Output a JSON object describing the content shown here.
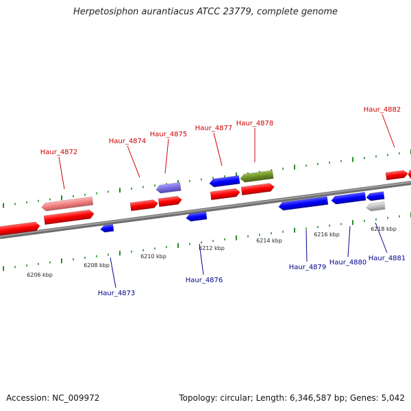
{
  "title": "Herpetosiphon aurantiacus ATCC 23779, complete genome",
  "footer": {
    "accession": "Accession: NC_009972",
    "summary": "Topology: circular; Length: 6,346,587 bp; Genes: 5,042"
  },
  "colors": {
    "backbone": "#808080",
    "forward": "#ff0000",
    "forward_light": "#f08080",
    "reverse": "#0000ff",
    "reverse_light": "#7a6ee0",
    "olive": "#6b8e23",
    "gray": "#c0c0c0",
    "forward_label": "#cc0000",
    "reverse_label": "#00008b",
    "tick": "#228b22"
  },
  "scale": {
    "ticks": [
      "6206 kbp",
      "6208 kbp",
      "6210 kbp",
      "6212 kbp",
      "6214 kbp",
      "6216 kbp",
      "6218 kbp"
    ]
  },
  "genes": [
    {
      "name": "Haur_4872",
      "strand": "forward"
    },
    {
      "name": "Haur_4873",
      "strand": "reverse"
    },
    {
      "name": "Haur_4874",
      "strand": "forward"
    },
    {
      "name": "Haur_4875",
      "strand": "forward"
    },
    {
      "name": "Haur_4876",
      "strand": "reverse"
    },
    {
      "name": "Haur_4877",
      "strand": "forward"
    },
    {
      "name": "Haur_4878",
      "strand": "forward"
    },
    {
      "name": "Haur_4879",
      "strand": "reverse"
    },
    {
      "name": "Haur_4880",
      "strand": "reverse"
    },
    {
      "name": "Haur_4881",
      "strand": "reverse"
    },
    {
      "name": "Haur_4882",
      "strand": "forward"
    }
  ]
}
